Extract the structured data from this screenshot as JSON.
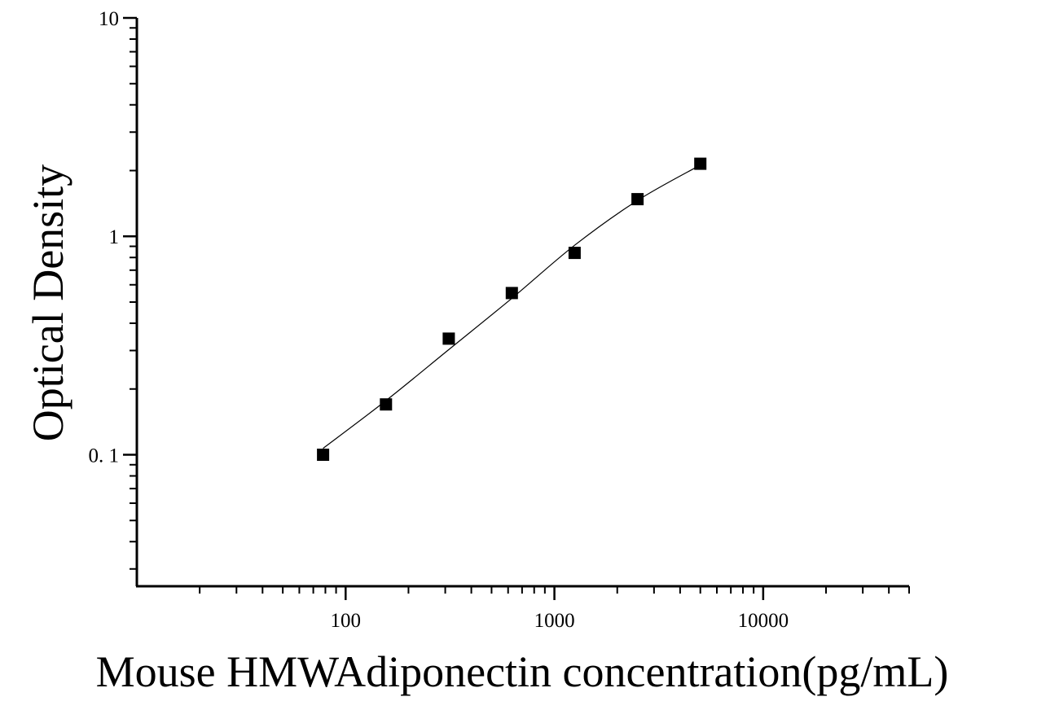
{
  "chart_data": {
    "type": "scatter",
    "xlabel": "Mouse HMWAdiponectin concentration(pg/mL)",
    "ylabel": "Optical Density",
    "x_scale": "log",
    "y_scale": "log",
    "xlim": [
      10,
      50000
    ],
    "ylim": [
      0.025,
      10
    ],
    "x_ticks": [
      {
        "value": 100,
        "label": "100"
      },
      {
        "value": 1000,
        "label": "1000"
      },
      {
        "value": 10000,
        "label": "10000"
      }
    ],
    "y_ticks": [
      {
        "value": 10,
        "label": "10"
      },
      {
        "value": 1,
        "label": "1"
      },
      {
        "value": 0.1,
        "label": "0. 1"
      }
    ],
    "grid": false,
    "legend": "none",
    "series": [
      {
        "marker": "square",
        "color": "#000000",
        "points": [
          {
            "x": 78,
            "y": 0.1
          },
          {
            "x": 156,
            "y": 0.17
          },
          {
            "x": 312,
            "y": 0.34
          },
          {
            "x": 625,
            "y": 0.55
          },
          {
            "x": 1250,
            "y": 0.84
          },
          {
            "x": 2500,
            "y": 1.48
          },
          {
            "x": 5000,
            "y": 2.15
          }
        ]
      }
    ],
    "fit_curve": {
      "color": "#000000",
      "points": [
        {
          "x": 78,
          "y": 0.107
        },
        {
          "x": 156,
          "y": 0.177
        },
        {
          "x": 312,
          "y": 0.303
        },
        {
          "x": 625,
          "y": 0.52
        },
        {
          "x": 1250,
          "y": 0.91
        },
        {
          "x": 2500,
          "y": 1.46
        },
        {
          "x": 5000,
          "y": 2.12
        }
      ]
    }
  }
}
